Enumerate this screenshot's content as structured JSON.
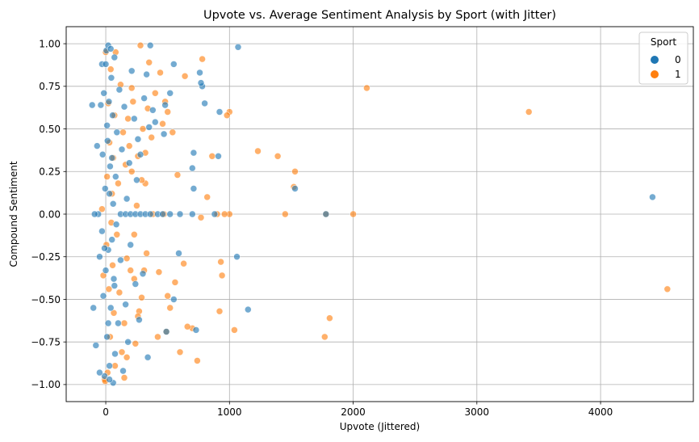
{
  "chart_data": {
    "type": "scatter",
    "title": "Upvote vs. Average Sentiment Analysis by Sport (with Jitter)",
    "xlabel": "Upvote (Jittered)",
    "ylabel": "Compound Sentiment",
    "xlim": [
      -320,
      4750
    ],
    "ylim": [
      -1.1,
      1.1
    ],
    "xticks": [
      0,
      1000,
      2000,
      3000,
      4000
    ],
    "xtick_labels": [
      "0",
      "1000",
      "2000",
      "3000",
      "4000"
    ],
    "yticks": [
      1.0,
      0.75,
      0.5,
      0.25,
      0.0,
      -0.25,
      -0.5,
      -0.75,
      -1.0
    ],
    "ytick_labels": [
      "1.00",
      "0.75",
      "0.50",
      "0.25",
      "0.00",
      "−0.25",
      "−0.50",
      "−0.75",
      "−1.00"
    ],
    "grid": true,
    "legend": {
      "title": "Sport",
      "placement": "top-right",
      "entries": [
        {
          "label": "0",
          "color": "#1f77b4"
        },
        {
          "label": "1",
          "color": "#ff7f0e"
        }
      ]
    },
    "series": [
      {
        "name": "1",
        "color": "#ff7f0e",
        "points": [
          [
            4540,
            -0.44
          ],
          [
            3420,
            0.6
          ],
          [
            2110,
            0.74
          ],
          [
            2000,
            0.0
          ],
          [
            1810,
            -0.61
          ],
          [
            1770,
            -0.72
          ],
          [
            1780,
            0.0
          ],
          [
            1530,
            0.25
          ],
          [
            1520,
            0.16
          ],
          [
            1450,
            0.0
          ],
          [
            1390,
            0.34
          ],
          [
            1230,
            0.37
          ],
          [
            1040,
            -0.68
          ],
          [
            1000,
            0.6
          ],
          [
            980,
            0.58
          ],
          [
            1000,
            0.0
          ],
          [
            960,
            0.0
          ],
          [
            940,
            -0.36
          ],
          [
            930,
            -0.28
          ],
          [
            920,
            -0.57
          ],
          [
            900,
            0.0
          ],
          [
            860,
            0.34
          ],
          [
            820,
            0.1
          ],
          [
            780,
            0.91
          ],
          [
            770,
            -0.02
          ],
          [
            740,
            -0.86
          ],
          [
            700,
            -0.67
          ],
          [
            660,
            -0.66
          ],
          [
            640,
            0.81
          ],
          [
            630,
            -0.29
          ],
          [
            600,
            -0.81
          ],
          [
            580,
            0.23
          ],
          [
            560,
            -0.4
          ],
          [
            540,
            0.48
          ],
          [
            520,
            -0.55
          ],
          [
            500,
            0.6
          ],
          [
            500,
            -0.48
          ],
          [
            490,
            -0.69
          ],
          [
            480,
            0.66
          ],
          [
            470,
            0.0
          ],
          [
            460,
            0.53
          ],
          [
            440,
            0.83
          ],
          [
            430,
            -0.34
          ],
          [
            420,
            -0.72
          ],
          [
            400,
            0.71
          ],
          [
            380,
            0.0
          ],
          [
            370,
            0.45
          ],
          [
            350,
            0.89
          ],
          [
            340,
            0.62
          ],
          [
            330,
            -0.23
          ],
          [
            320,
            0.18
          ],
          [
            310,
            -0.33
          ],
          [
            300,
            0.5
          ],
          [
            290,
            -0.49
          ],
          [
            280,
            0.99
          ],
          [
            270,
            -0.57
          ],
          [
            260,
            0.34
          ],
          [
            250,
            0.05
          ],
          [
            240,
            -0.76
          ],
          [
            230,
            -0.12
          ],
          [
            220,
            0.66
          ],
          [
            210,
            0.74
          ],
          [
            200,
            -0.33
          ],
          [
            190,
            0.4
          ],
          [
            180,
            0.56
          ],
          [
            170,
            -0.26
          ],
          [
            160,
            0.29
          ],
          [
            150,
            -0.64
          ],
          [
            140,
            0.48
          ],
          [
            130,
            -0.81
          ],
          [
            120,
            0.76
          ],
          [
            110,
            -0.46
          ],
          [
            100,
            0.18
          ],
          [
            90,
            -0.12
          ],
          [
            80,
            0.95
          ],
          [
            75,
            -0.89
          ],
          [
            70,
            0.58
          ],
          [
            65,
            -0.58
          ],
          [
            60,
            0.33
          ],
          [
            55,
            -0.3
          ],
          [
            50,
            0.12
          ],
          [
            45,
            -0.05
          ],
          [
            40,
            0.85
          ],
          [
            35,
            -0.72
          ],
          [
            30,
            0.42
          ],
          [
            25,
            -0.44
          ],
          [
            20,
            0.65
          ],
          [
            15,
            -0.93
          ],
          [
            10,
            0.22
          ],
          [
            5,
            -0.18
          ],
          [
            0,
            0.95
          ],
          [
            -10,
            -0.97
          ],
          [
            -20,
            -0.36
          ],
          [
            -30,
            0.03
          ],
          [
            -5,
            -0.98
          ],
          [
            150,
            -0.96
          ],
          [
            170,
            -0.84
          ],
          [
            230,
            -0.38
          ],
          [
            260,
            -0.6
          ],
          [
            290,
            0.2
          ],
          [
            320,
            0.36
          ],
          [
            210,
            0.25
          ]
        ]
      },
      {
        "name": "0",
        "color": "#1f77b4",
        "points": [
          [
            4420,
            0.1
          ],
          [
            1780,
            0.0
          ],
          [
            1530,
            0.15
          ],
          [
            1150,
            -0.56
          ],
          [
            1070,
            0.98
          ],
          [
            1060,
            -0.25
          ],
          [
            920,
            0.6
          ],
          [
            910,
            0.34
          ],
          [
            880,
            0.0
          ],
          [
            800,
            0.65
          ],
          [
            780,
            0.75
          ],
          [
            770,
            0.77
          ],
          [
            760,
            0.83
          ],
          [
            730,
            -0.68
          ],
          [
            710,
            0.36
          ],
          [
            710,
            0.15
          ],
          [
            700,
            0.27
          ],
          [
            590,
            -0.23
          ],
          [
            550,
            0.88
          ],
          [
            550,
            -0.5
          ],
          [
            520,
            0.71
          ],
          [
            490,
            -0.69
          ],
          [
            480,
            0.64
          ],
          [
            470,
            0.47
          ],
          [
            420,
            0.0
          ],
          [
            400,
            0.54
          ],
          [
            380,
            0.61
          ],
          [
            360,
            0.99
          ],
          [
            350,
            0.51
          ],
          [
            340,
            -0.84
          ],
          [
            330,
            0.82
          ],
          [
            310,
            0.68
          ],
          [
            300,
            -0.35
          ],
          [
            280,
            0.35
          ],
          [
            270,
            -0.62
          ],
          [
            260,
            0.44
          ],
          [
            250,
            0.2
          ],
          [
            240,
            -0.41
          ],
          [
            230,
            0.56
          ],
          [
            210,
            0.84
          ],
          [
            200,
            -0.18
          ],
          [
            190,
            0.3
          ],
          [
            180,
            -0.75
          ],
          [
            170,
            0.09
          ],
          [
            160,
            -0.53
          ],
          [
            150,
            0.63
          ],
          [
            140,
            -0.92
          ],
          [
            130,
            0.38
          ],
          [
            120,
            -0.27
          ],
          [
            110,
            0.73
          ],
          [
            100,
            -0.64
          ],
          [
            90,
            0.48
          ],
          [
            85,
            -0.06
          ],
          [
            80,
            0.22
          ],
          [
            75,
            -0.82
          ],
          [
            70,
            0.92
          ],
          [
            65,
            -0.38
          ],
          [
            60,
            0.06
          ],
          [
            55,
            0.58
          ],
          [
            50,
            -0.15
          ],
          [
            45,
            0.8
          ],
          [
            40,
            -0.55
          ],
          [
            35,
            0.28
          ],
          [
            30,
            -0.89
          ],
          [
            25,
            0.66
          ],
          [
            20,
            -0.21
          ],
          [
            15,
            0.43
          ],
          [
            10,
            -0.72
          ],
          [
            5,
            0.96
          ],
          [
            0,
            -0.33
          ],
          [
            -5,
            0.15
          ],
          [
            -10,
            -0.95
          ],
          [
            -15,
            0.71
          ],
          [
            -20,
            -0.48
          ],
          [
            -25,
            0.35
          ],
          [
            -30,
            -0.1
          ],
          [
            -40,
            0.64
          ],
          [
            -60,
            0.0
          ],
          [
            -100,
            -0.55
          ],
          [
            -80,
            -0.77
          ],
          [
            -70,
            0.4
          ],
          [
            -50,
            -0.25
          ],
          [
            -90,
            0.0
          ],
          [
            -110,
            0.64
          ],
          [
            -50,
            -0.93
          ],
          [
            -30,
            0.88
          ],
          [
            20,
            0.99
          ],
          [
            40,
            0.97
          ],
          [
            60,
            -0.99
          ],
          [
            30,
            -0.97
          ],
          [
            120,
            0.0
          ],
          [
            160,
            0.0
          ],
          [
            200,
            0.0
          ],
          [
            240,
            0.0
          ],
          [
            280,
            0.0
          ],
          [
            320,
            0.0
          ],
          [
            360,
            0.0
          ],
          [
            460,
            0.0
          ],
          [
            520,
            0.0
          ],
          [
            600,
            0.0
          ],
          [
            700,
            0.0
          ],
          [
            10,
            0.52
          ],
          [
            20,
            -0.64
          ],
          [
            0,
            0.88
          ],
          [
            -10,
            -0.2
          ],
          [
            50,
            0.33
          ],
          [
            30,
            0.12
          ],
          [
            70,
            -0.42
          ]
        ]
      }
    ]
  }
}
